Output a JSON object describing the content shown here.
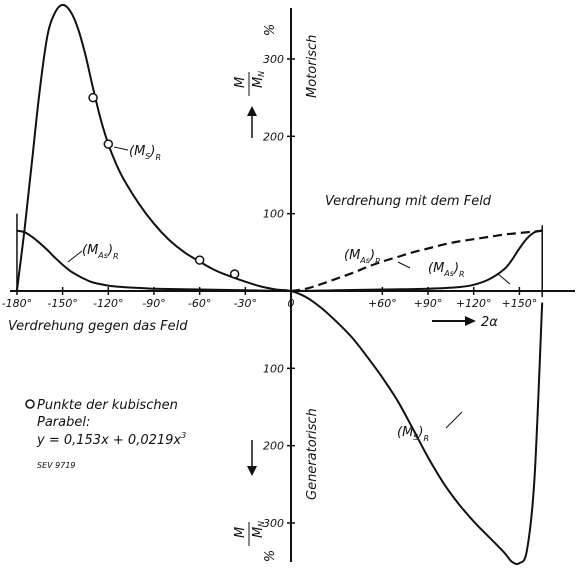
{
  "chart_data": {
    "type": "line",
    "x_axis": {
      "range": [
        -180,
        165
      ],
      "ticks_left": [
        "-180°",
        "-150°",
        "-120°",
        "-90°",
        "-60°",
        "-30°",
        "0"
      ],
      "ticks_right": [
        "+60°",
        "+90°",
        "+120°",
        "+150°"
      ],
      "label_left": "Verdrehung gegen das Feld",
      "label_right": "Verdrehung mit dem Feld",
      "arrow_label": "2α"
    },
    "y_axis": {
      "range": [
        -360,
        375
      ],
      "ticks_up": [
        "100",
        "200",
        "300"
      ],
      "ticks_down": [
        "100",
        "200",
        "300"
      ],
      "unit": "%",
      "label_num": "M",
      "label_den": "M",
      "label_den_sub": "N",
      "label_up": "Motorisch",
      "label_down": "Generatorisch"
    },
    "series": [
      {
        "name": "(MS)R",
        "label_main": "(M",
        "label_sub": "S",
        "label_tail": ")",
        "label_r": "R",
        "style": "solid",
        "x": [
          -180,
          -175,
          -170,
          -165,
          -160,
          -155,
          -150,
          -145,
          -140,
          -135,
          -130,
          -125,
          -120,
          -115,
          -110,
          -100,
          -90,
          -80,
          -70,
          -60,
          -50,
          -40,
          -30,
          -20,
          -10,
          0,
          10,
          20,
          30,
          40,
          50,
          60,
          70,
          80,
          90,
          100,
          110,
          120,
          130,
          140,
          145,
          150,
          155,
          160,
          165
        ],
        "y": [
          0,
          80,
          170,
          260,
          330,
          360,
          370,
          362,
          340,
          305,
          262,
          222,
          190,
          165,
          145,
          113,
          87,
          66,
          50,
          38,
          27,
          19,
          12,
          6,
          2,
          0,
          -8,
          -22,
          -40,
          -60,
          -85,
          -112,
          -142,
          -178,
          -215,
          -248,
          -275,
          -298,
          -318,
          -338,
          -350,
          -352,
          -335,
          -240,
          -15
        ]
      },
      {
        "name": "(MAs)R",
        "label_main": "(M",
        "label_sub": "As",
        "label_tail": ")",
        "label_r": "R",
        "style": "solid",
        "x": [
          -180,
          -175,
          -170,
          -165,
          -160,
          -155,
          -150,
          -145,
          -140,
          -135,
          -130,
          -120,
          -110,
          -100,
          -90,
          -60,
          -30,
          0,
          30,
          60,
          90,
          110,
          120,
          130,
          140,
          145,
          150,
          155,
          160,
          165
        ],
        "y": [
          78,
          76,
          70,
          62,
          53,
          43,
          34,
          26,
          20,
          15,
          11,
          7,
          5,
          4,
          3,
          2,
          1,
          0,
          1,
          2,
          3,
          5,
          8,
          15,
          28,
          40,
          55,
          68,
          76,
          78
        ]
      },
      {
        "name": "(MAs)P",
        "label_main": "(M",
        "label_sub": "As",
        "label_tail": ")",
        "label_r": "P",
        "style": "dashed",
        "x": [
          0,
          10,
          20,
          30,
          40,
          50,
          60,
          70,
          80,
          90,
          100,
          110,
          120,
          130,
          140,
          150,
          160,
          165
        ],
        "y": [
          0,
          3,
          9,
          16,
          23,
          31,
          38,
          44,
          50,
          55,
          60,
          64,
          67,
          70,
          73,
          75,
          77,
          78
        ]
      }
    ],
    "markers": {
      "x": [
        -130,
        -120,
        -60,
        -37
      ],
      "y": [
        250,
        190,
        40,
        22
      ]
    },
    "legend": {
      "marker_text": "Punkte der kubischen",
      "line2": "Parabel:",
      "formula": "y = 0,153x + 0,0219x",
      "formula_exp": "3"
    },
    "figure_code": "SEV 9719"
  }
}
